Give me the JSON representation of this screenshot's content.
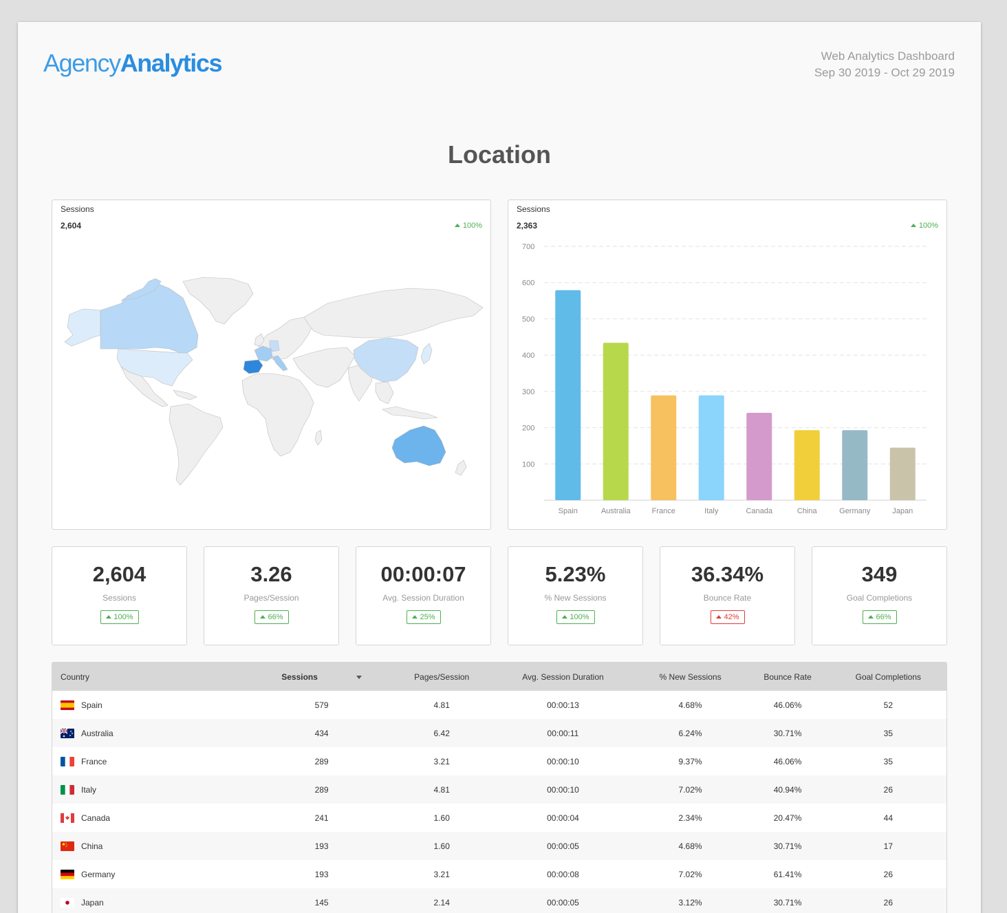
{
  "header": {
    "logo_light": "Agency",
    "logo_bold": "Analytics",
    "report_title": "Web Analytics Dashboard",
    "date_range": "Sep 30 2019 - Oct 29 2019"
  },
  "section": {
    "title": "Location"
  },
  "map_widget": {
    "label": "Sessions",
    "value": "2,604",
    "change": "100%",
    "highlighted_countries": [
      {
        "name": "Spain",
        "level": 5
      },
      {
        "name": "Australia",
        "level": 4
      },
      {
        "name": "France",
        "level": 3
      },
      {
        "name": "Italy",
        "level": 3
      },
      {
        "name": "Canada",
        "level": 3
      },
      {
        "name": "China",
        "level": 2
      },
      {
        "name": "Germany",
        "level": 2
      },
      {
        "name": "Japan",
        "level": 1
      },
      {
        "name": "United States",
        "level": 1
      },
      {
        "name": "Greenland",
        "level": 1
      }
    ]
  },
  "bar_widget": {
    "label": "Sessions",
    "value": "2,363",
    "change": "100%"
  },
  "chart_data": {
    "type": "bar",
    "categories": [
      "Spain",
      "Australia",
      "France",
      "Italy",
      "Canada",
      "China",
      "Germany",
      "Japan"
    ],
    "values": [
      579,
      434,
      289,
      289,
      241,
      193,
      193,
      145
    ],
    "colors": [
      "#61bbe8",
      "#b8d84c",
      "#f7c160",
      "#8bd4fc",
      "#d49acb",
      "#f0cf3a",
      "#96b9c6",
      "#c9c4a9"
    ],
    "ylim": [
      0,
      700
    ],
    "yticks": [
      100,
      200,
      300,
      400,
      500,
      600,
      700
    ],
    "grid": true
  },
  "stats": [
    {
      "value": "2,604",
      "label": "Sessions",
      "change": "100%",
      "direction": "up",
      "good": true
    },
    {
      "value": "3.26",
      "label": "Pages/Session",
      "change": "66%",
      "direction": "up",
      "good": true
    },
    {
      "value": "00:00:07",
      "label": "Avg. Session Duration",
      "change": "25%",
      "direction": "up",
      "good": true
    },
    {
      "value": "5.23%",
      "label": "% New Sessions",
      "change": "100%",
      "direction": "up",
      "good": true
    },
    {
      "value": "36.34%",
      "label": "Bounce Rate",
      "change": "42%",
      "direction": "up",
      "good": false
    },
    {
      "value": "349",
      "label": "Goal Completions",
      "change": "66%",
      "direction": "up",
      "good": true
    }
  ],
  "table": {
    "columns": [
      "Country",
      "Sessions",
      "Pages/Session",
      "Avg. Session Duration",
      "% New Sessions",
      "Bounce Rate",
      "Goal Completions"
    ],
    "rows": [
      {
        "flag": "es",
        "country": "Spain",
        "sessions": "579",
        "pages": "4.81",
        "duration": "00:00:13",
        "new": "4.68%",
        "bounce": "46.06%",
        "goals": "52"
      },
      {
        "flag": "au",
        "country": "Australia",
        "sessions": "434",
        "pages": "6.42",
        "duration": "00:00:11",
        "new": "6.24%",
        "bounce": "30.71%",
        "goals": "35"
      },
      {
        "flag": "fr",
        "country": "France",
        "sessions": "289",
        "pages": "3.21",
        "duration": "00:00:10",
        "new": "9.37%",
        "bounce": "46.06%",
        "goals": "35"
      },
      {
        "flag": "it",
        "country": "Italy",
        "sessions": "289",
        "pages": "4.81",
        "duration": "00:00:10",
        "new": "7.02%",
        "bounce": "40.94%",
        "goals": "26"
      },
      {
        "flag": "ca",
        "country": "Canada",
        "sessions": "241",
        "pages": "1.60",
        "duration": "00:00:04",
        "new": "2.34%",
        "bounce": "20.47%",
        "goals": "44"
      },
      {
        "flag": "cn",
        "country": "China",
        "sessions": "193",
        "pages": "1.60",
        "duration": "00:00:05",
        "new": "4.68%",
        "bounce": "30.71%",
        "goals": "17"
      },
      {
        "flag": "de",
        "country": "Germany",
        "sessions": "193",
        "pages": "3.21",
        "duration": "00:00:08",
        "new": "7.02%",
        "bounce": "61.41%",
        "goals": "26"
      },
      {
        "flag": "jp",
        "country": "Japan",
        "sessions": "145",
        "pages": "2.14",
        "duration": "00:00:05",
        "new": "3.12%",
        "bounce": "30.71%",
        "goals": "26"
      }
    ]
  }
}
